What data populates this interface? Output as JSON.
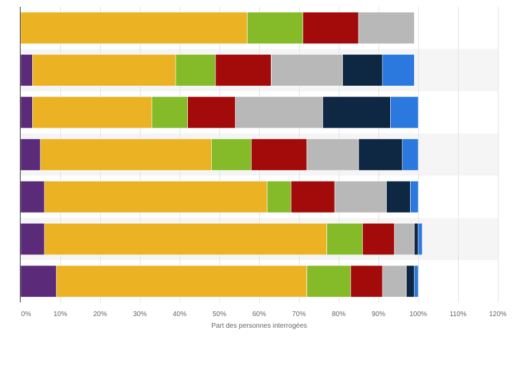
{
  "chart_data": {
    "type": "bar",
    "orientation": "horizontal",
    "stacked": true,
    "title": "",
    "xlabel": "Part des personnes interrogées",
    "ylabel": "",
    "xlim": [
      0,
      120
    ],
    "xticks": [
      "0%",
      "10%",
      "20%",
      "30%",
      "40%",
      "50%",
      "60%",
      "70%",
      "80%",
      "90%",
      "100%",
      "110%",
      "120%"
    ],
    "rows": 7,
    "series": [
      {
        "name": "segment-1",
        "color": "#5b2a78",
        "values": [
          0,
          3,
          3,
          5,
          6,
          6,
          9
        ]
      },
      {
        "name": "segment-2",
        "color": "#ebb224",
        "values": [
          57,
          36,
          30,
          43,
          56,
          71,
          63
        ]
      },
      {
        "name": "segment-3",
        "color": "#85bb28",
        "values": [
          14,
          10,
          9,
          10,
          6,
          9,
          11
        ]
      },
      {
        "name": "segment-4",
        "color": "#a30a0a",
        "values": [
          14,
          14,
          12,
          14,
          11,
          8,
          8
        ]
      },
      {
        "name": "segment-5",
        "color": "#b8b8b8",
        "values": [
          14,
          18,
          22,
          13,
          13,
          5,
          6
        ]
      },
      {
        "name": "segment-6",
        "color": "#0e2742",
        "values": [
          0,
          10,
          17,
          11,
          6,
          1,
          2
        ]
      },
      {
        "name": "segment-7",
        "color": "#2b79de",
        "values": [
          0,
          8,
          7,
          4,
          2,
          1,
          1
        ]
      }
    ]
  }
}
